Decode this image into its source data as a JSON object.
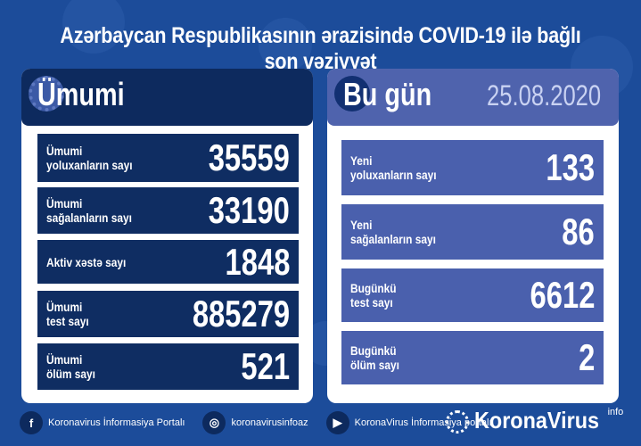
{
  "title": "Azərbaycan Respublikasının ərazisində COVID-19 ilə bağlı son vəziyyət",
  "total": {
    "heading": "Ümumi",
    "rows": [
      {
        "label": "Ümumi\nyoluxanların sayı",
        "value": "35559"
      },
      {
        "label": "Ümumi\nsağalanların sayı",
        "value": "33190"
      },
      {
        "label": "Aktiv xəstə sayı",
        "value": "1848"
      },
      {
        "label": "Ümumi\ntest sayı",
        "value": "885279"
      },
      {
        "label": "Ümumi\nölüm sayı",
        "value": "521"
      }
    ]
  },
  "today": {
    "heading": "Bu gün",
    "date": "25.08.2020",
    "rows": [
      {
        "label": "Yeni\nyoluxanların sayı",
        "value": "133"
      },
      {
        "label": "Yeni\nsağalanların sayı",
        "value": "86"
      },
      {
        "label": "Bugünkü\ntest sayı",
        "value": "6612"
      },
      {
        "label": "Bugünkü\nölüm sayı",
        "value": "2"
      }
    ]
  },
  "footer": {
    "facebook": "Koronavirus İnformasiya Portalı",
    "instagram": "koronavirusinfoaz",
    "youtube": "KoronaVirus İnformasiya portalı"
  },
  "brand": {
    "name": "KoronaVirus",
    "suffix": "info"
  },
  "colors": {
    "background": "#1c4c9a",
    "total_rows": "#0f2d62",
    "today_rows": "#4a60ad"
  }
}
